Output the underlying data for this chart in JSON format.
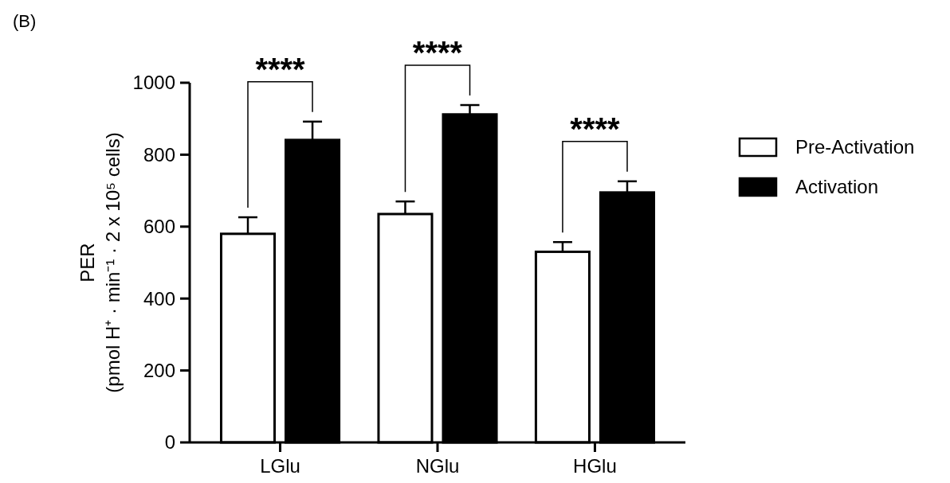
{
  "chart_data": {
    "type": "bar",
    "title": "(B)",
    "ylabel": "PER\n(pmol H⁺ · min⁻¹ · 2 x 10⁵ cells)",
    "categories": [
      "LGlu",
      "NGlu",
      "HGlu"
    ],
    "series": [
      {
        "name": "Pre-Activation",
        "color": "#ffffff",
        "values": [
          580,
          635,
          530
        ],
        "errors": [
          [
            580,
            626
          ],
          [
            635,
            670
          ],
          [
            530,
            557
          ]
        ]
      },
      {
        "name": "Activation",
        "color": "#000000",
        "values": [
          841,
          912,
          695
        ],
        "errors": [
          [
            841,
            892
          ],
          [
            912,
            938
          ],
          [
            695,
            726
          ]
        ]
      }
    ],
    "annotations": [
      "****",
      "****",
      "****"
    ],
    "ylim": [
      0,
      1000
    ],
    "yticks": [
      0,
      200,
      400,
      600,
      800,
      1000
    ],
    "grid": false,
    "legend": "right"
  }
}
